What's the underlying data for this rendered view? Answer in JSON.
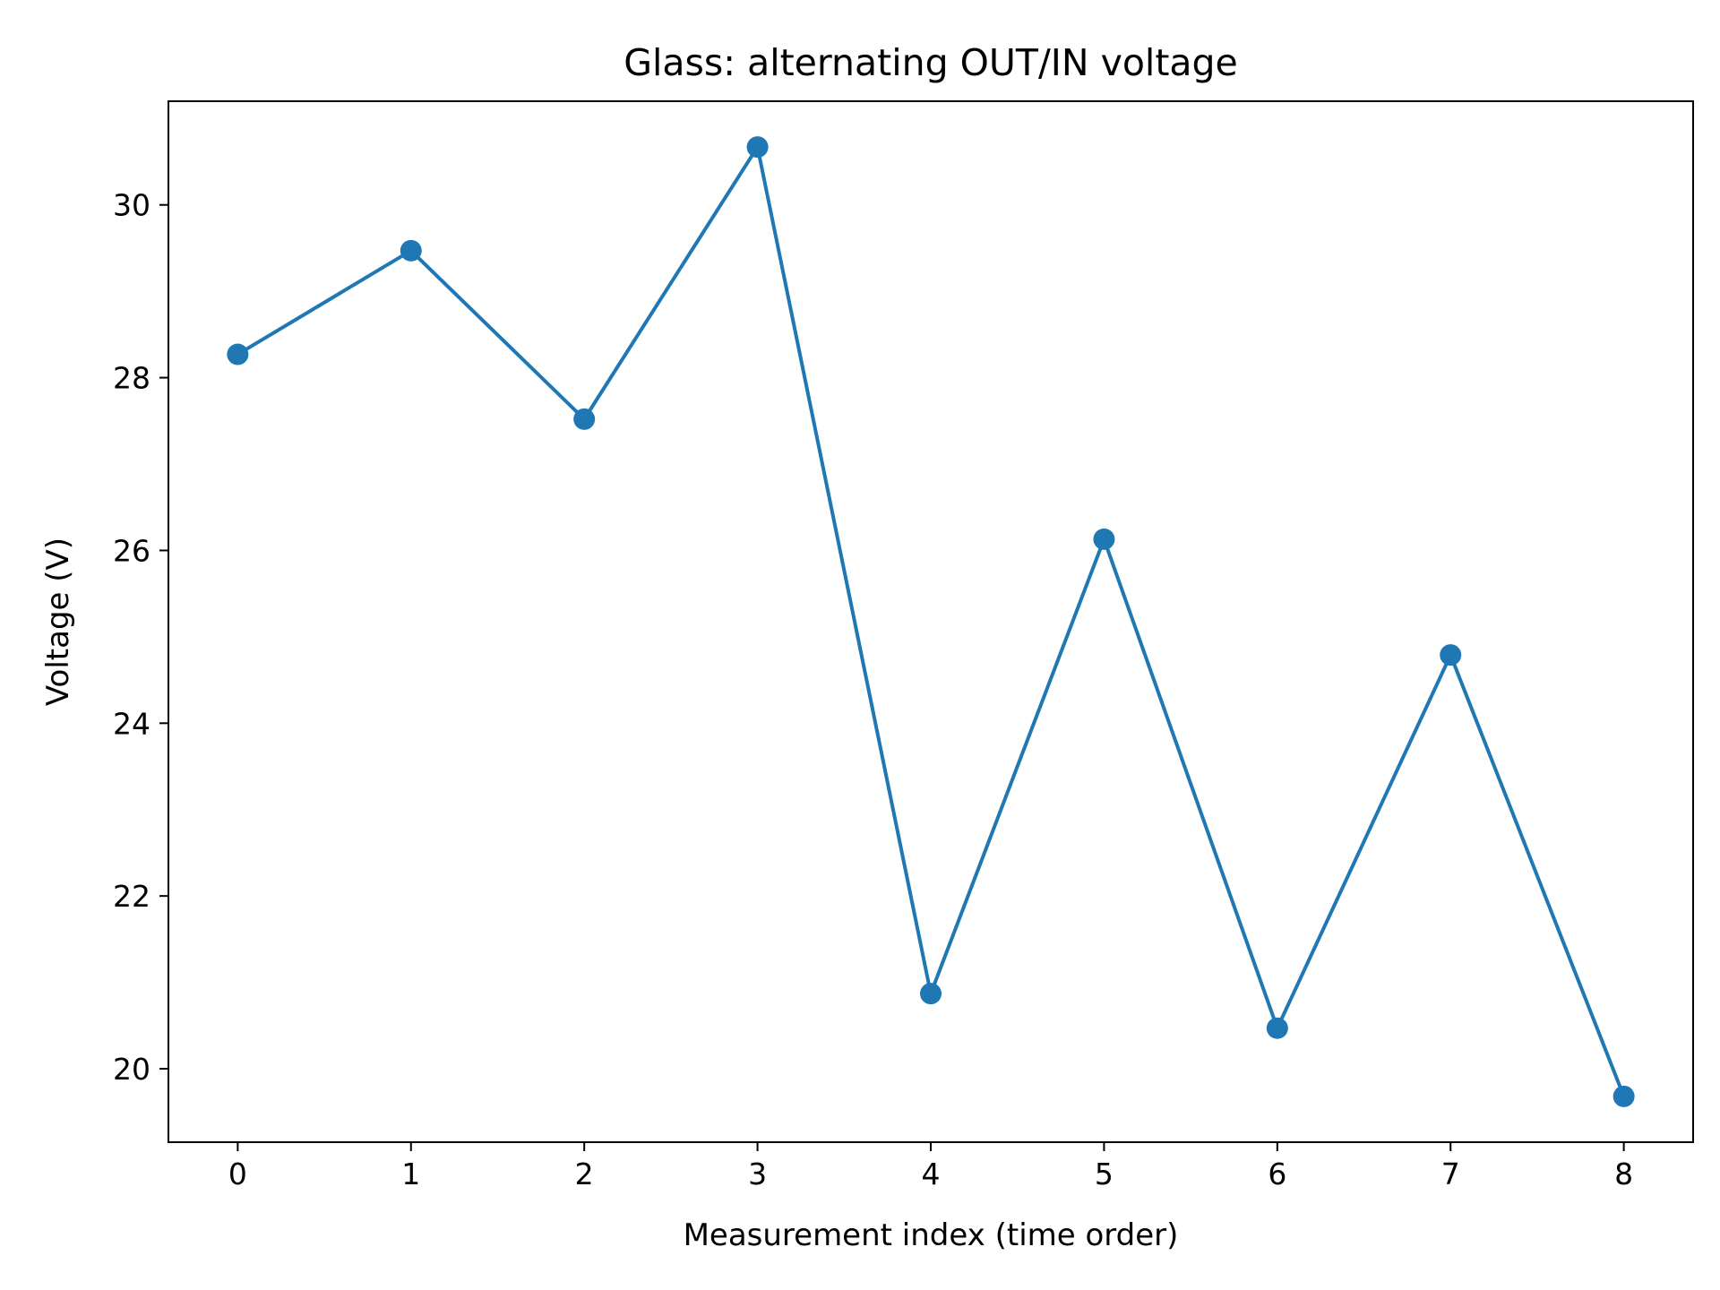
{
  "chart_data": {
    "type": "line",
    "title": "Glass: alternating OUT/IN voltage",
    "xlabel": "Measurement index (time order)",
    "ylabel": "Voltage (V)",
    "x": [
      0,
      1,
      2,
      3,
      4,
      5,
      6,
      7,
      8
    ],
    "series": [
      {
        "values": [
          28.27,
          29.47,
          27.52,
          30.67,
          20.87,
          26.13,
          20.47,
          24.79,
          19.68
        ],
        "color": "#1f77b4",
        "marker": "circle"
      }
    ],
    "xlim": [
      -0.4,
      8.4
    ],
    "ylim": [
      19.15,
      31.2
    ],
    "xticks": [
      0,
      1,
      2,
      3,
      4,
      5,
      6,
      7,
      8
    ],
    "xtick_labels": [
      "0",
      "1",
      "2",
      "3",
      "4",
      "5",
      "6",
      "7",
      "8"
    ],
    "yticks": [
      20,
      22,
      24,
      26,
      28,
      30
    ],
    "ytick_labels": [
      "20",
      "22",
      "24",
      "26",
      "28",
      "30"
    ],
    "grid": false,
    "legend": "none"
  }
}
